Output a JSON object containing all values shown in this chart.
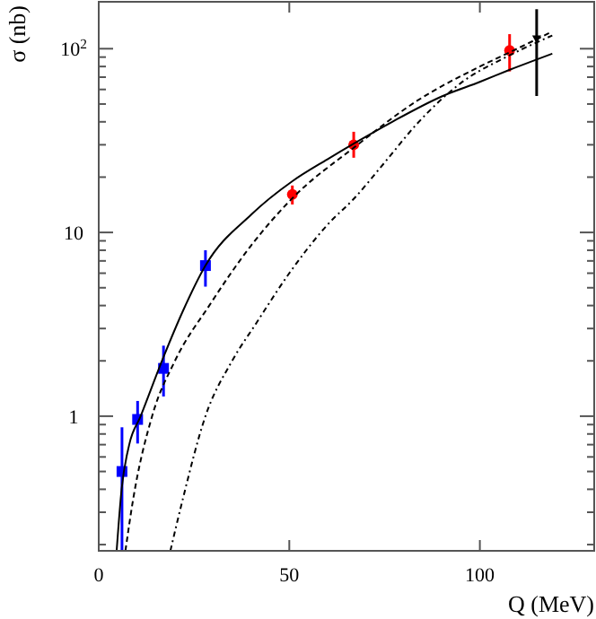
{
  "chart_data": {
    "type": "scatter",
    "xlabel": "Q (MeV)",
    "ylabel": "σ (nb)",
    "log": "y",
    "xlim": [
      0,
      130
    ],
    "ylim": [
      0.185,
      180
    ],
    "xticks": [
      0,
      50,
      100
    ],
    "yticks": [
      {
        "value": 0.2,
        "label": null
      },
      {
        "value": 0.3,
        "label": null
      },
      {
        "value": 0.4,
        "label": null
      },
      {
        "value": 0.5,
        "label": null
      },
      {
        "value": 0.6,
        "label": null
      },
      {
        "value": 0.7,
        "label": null
      },
      {
        "value": 0.8,
        "label": null
      },
      {
        "value": 0.9,
        "label": null
      },
      1,
      {
        "value": 2,
        "label": null
      },
      {
        "value": 3,
        "label": null
      },
      {
        "value": 4,
        "label": null
      },
      {
        "value": 5,
        "label": null
      },
      {
        "value": 6,
        "label": null
      },
      {
        "value": 7,
        "label": null
      },
      {
        "value": 8,
        "label": null
      },
      {
        "value": 9,
        "label": null
      },
      10,
      {
        "value": 20,
        "label": null
      },
      {
        "value": 30,
        "label": null
      },
      {
        "value": 40,
        "label": null
      },
      {
        "value": 50,
        "label": null
      },
      {
        "value": 60,
        "label": null
      },
      {
        "value": 70,
        "label": null
      },
      {
        "value": 80,
        "label": null
      },
      {
        "value": 90,
        "label": null
      },
      {
        "value": 100,
        "label": "10$^{2}$"
      }
    ],
    "grid": false,
    "series": [
      {
        "color": "#0000ff",
        "marker": "square",
        "x": [
          6.1,
          10.2,
          17.0,
          28.0
        ],
        "values": [
          0.5,
          0.96,
          1.82,
          6.6
        ],
        "errors": [
          [
            0.185,
            0.87
          ],
          [
            0.71,
            1.21
          ],
          [
            1.28,
            2.42
          ],
          [
            5.07,
            8.0
          ]
        ]
      },
      {
        "color": "#ff0000",
        "marker": "circle",
        "x": [
          50.8,
          66.9,
          107.8
        ],
        "values": [
          16.1,
          30.0,
          97.8
        ],
        "errors": [
          [
            14.2,
            18.0
          ],
          [
            25.5,
            35.3
          ],
          [
            75.2,
            120
          ]
        ]
      },
      {
        "color": "#000000",
        "marker": "triangle",
        "x": [
          114.9
        ],
        "values": [
          113
        ],
        "errors": [
          [
            55.3,
            164
          ]
        ]
      },
      {
        "type": "line",
        "color": "#000000",
        "line_style": "solid",
        "x": [
          4.7,
          6,
          8,
          11,
          17,
          22,
          28,
          40,
          50.8,
          60,
          67,
          77,
          90,
          100,
          108,
          119
        ],
        "values": [
          0.185,
          0.4,
          0.7,
          1.0,
          2.1,
          3.7,
          6.6,
          12.5,
          19,
          25,
          30.5,
          40,
          55,
          66,
          77,
          94
        ]
      },
      {
        "type": "line",
        "color": "#000000",
        "line_style": "dashed",
        "x": [
          7,
          9,
          14,
          20,
          29,
          40,
          51,
          67,
          83.5,
          100,
          108,
          119
        ],
        "values": [
          0.185,
          0.35,
          1,
          2,
          4,
          8.5,
          15.5,
          29,
          52,
          80,
          96,
          124
        ]
      },
      {
        "type": "line",
        "color": "#000000",
        "line_style": "dotted",
        "x": [
          18.8,
          22,
          28,
          35,
          41.3,
          50,
          60,
          67,
          75,
          83.5,
          95,
          107.8,
          119
        ],
        "values": [
          0.185,
          0.35,
          1,
          2,
          3.2,
          6,
          11,
          15.3,
          24,
          39,
          65,
          92,
          118
        ]
      }
    ]
  }
}
